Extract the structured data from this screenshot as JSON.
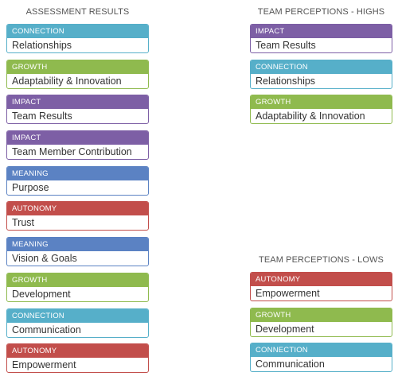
{
  "category_colors": {
    "CONNECTION": "#56afc9",
    "GROWTH": "#8fba4e",
    "IMPACT": "#7d5fa5",
    "MEANING": "#5b82c3",
    "AUTONOMY": "#c24e4b"
  },
  "assessment": {
    "heading": "ASSESSMENT RESULTS",
    "items": [
      {
        "category": "CONNECTION",
        "label": "Relationships"
      },
      {
        "category": "GROWTH",
        "label": "Adaptability & Innovation"
      },
      {
        "category": "IMPACT",
        "label": "Team Results"
      },
      {
        "category": "IMPACT",
        "label": "Team Member Contribution"
      },
      {
        "category": "MEANING",
        "label": "Purpose"
      },
      {
        "category": "AUTONOMY",
        "label": "Trust"
      },
      {
        "category": "MEANING",
        "label": "Vision & Goals"
      },
      {
        "category": "GROWTH",
        "label": "Development"
      },
      {
        "category": "CONNECTION",
        "label": "Communication"
      },
      {
        "category": "AUTONOMY",
        "label": "Empowerment"
      }
    ]
  },
  "highs": {
    "heading": "TEAM PERCEPTIONS - HIGHS",
    "items": [
      {
        "category": "IMPACT",
        "label": "Team Results"
      },
      {
        "category": "CONNECTION",
        "label": "Relationships"
      },
      {
        "category": "GROWTH",
        "label": "Adaptability & Innovation"
      }
    ]
  },
  "lows": {
    "heading": "TEAM PERCEPTIONS - LOWS",
    "items": [
      {
        "category": "AUTONOMY",
        "label": "Empowerment"
      },
      {
        "category": "GROWTH",
        "label": "Development"
      },
      {
        "category": "CONNECTION",
        "label": "Communication"
      }
    ]
  }
}
